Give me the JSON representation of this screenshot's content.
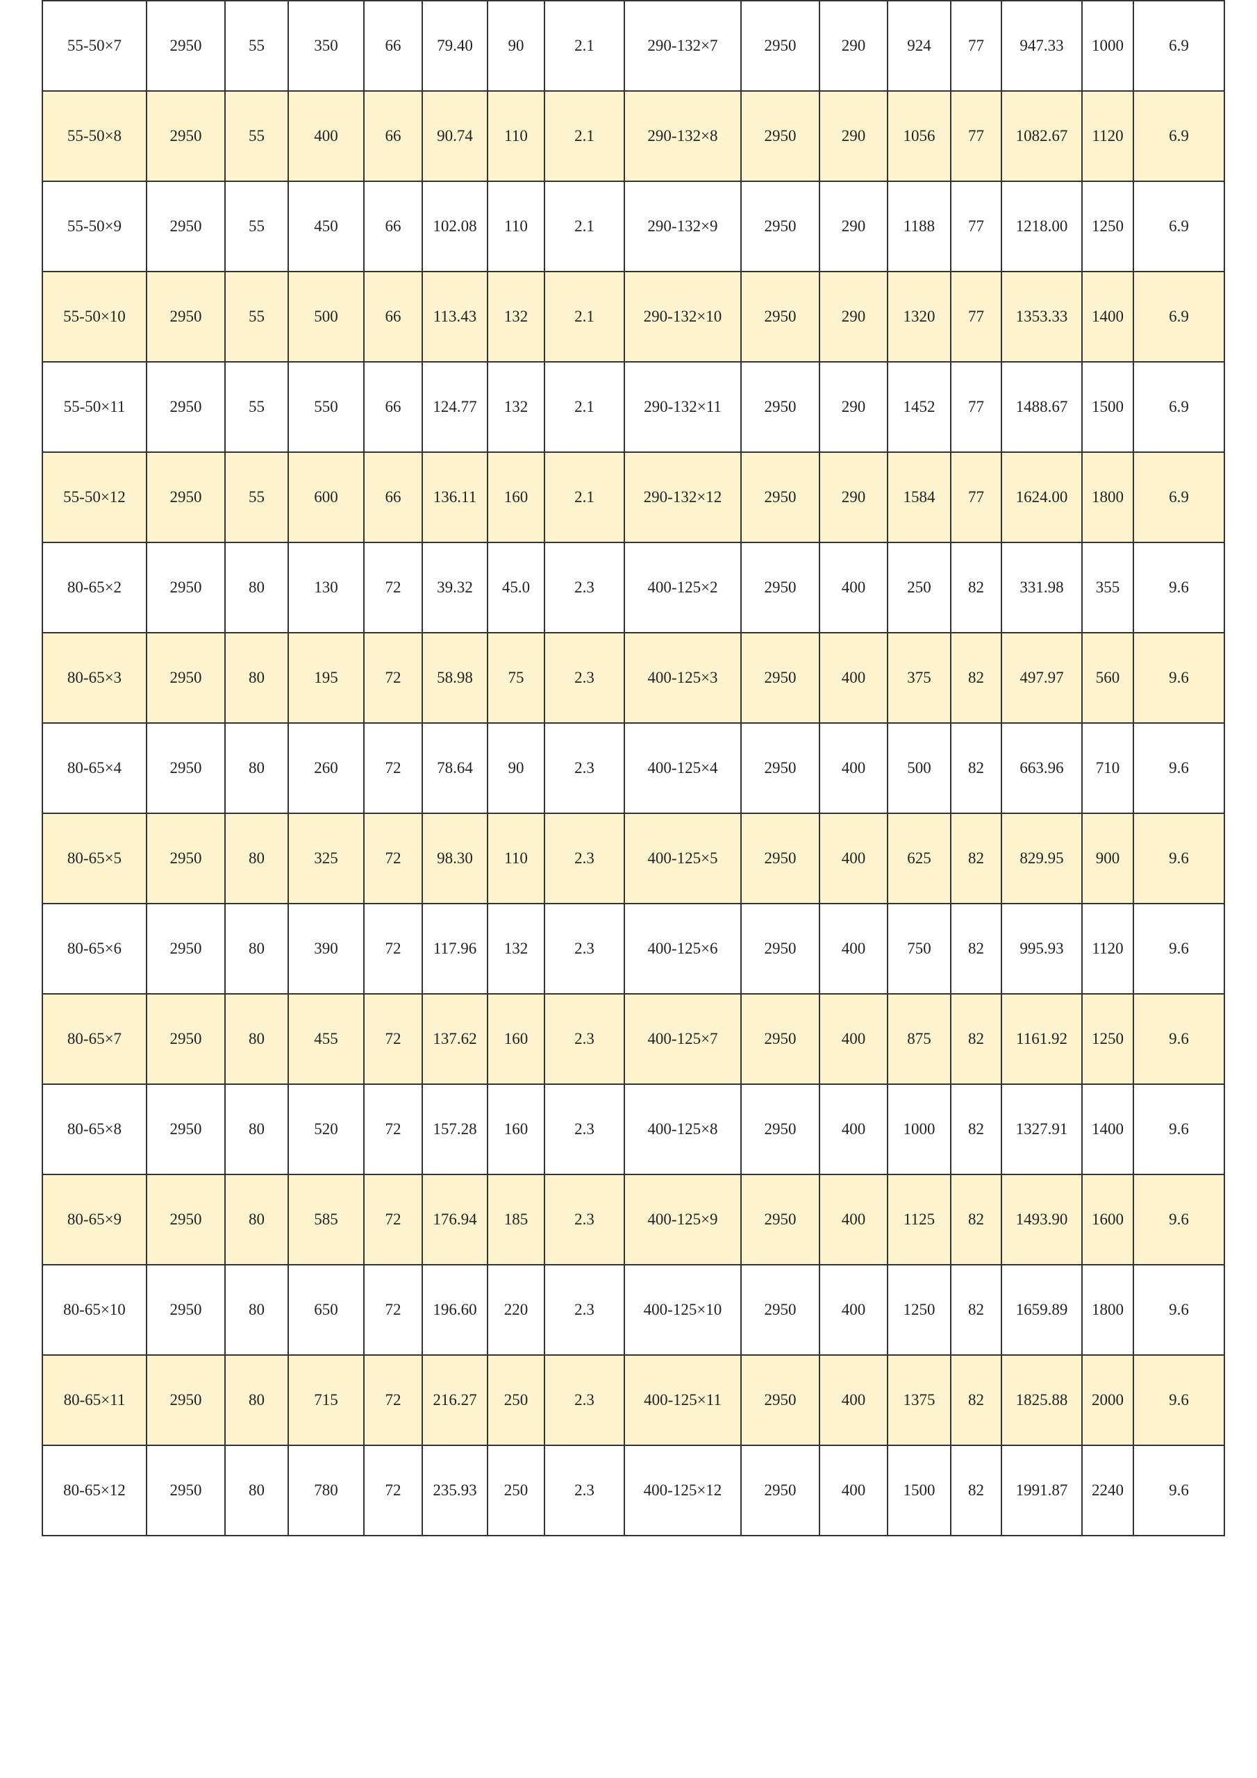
{
  "colors": {
    "row_alt_bg": "#FDF3CF",
    "row_bg": "#FFFFFF",
    "border": "#333333"
  },
  "table": {
    "rows": [
      [
        "55-50×7",
        "2950",
        "55",
        "350",
        "66",
        "79.40",
        "90",
        "2.1",
        "290-132×7",
        "2950",
        "290",
        "924",
        "77",
        "947.33",
        "1000",
        "6.9"
      ],
      [
        "55-50×8",
        "2950",
        "55",
        "400",
        "66",
        "90.74",
        "110",
        "2.1",
        "290-132×8",
        "2950",
        "290",
        "1056",
        "77",
        "1082.67",
        "1120",
        "6.9"
      ],
      [
        "55-50×9",
        "2950",
        "55",
        "450",
        "66",
        "102.08",
        "110",
        "2.1",
        "290-132×9",
        "2950",
        "290",
        "1188",
        "77",
        "1218.00",
        "1250",
        "6.9"
      ],
      [
        "55-50×10",
        "2950",
        "55",
        "500",
        "66",
        "113.43",
        "132",
        "2.1",
        "290-132×10",
        "2950",
        "290",
        "1320",
        "77",
        "1353.33",
        "1400",
        "6.9"
      ],
      [
        "55-50×11",
        "2950",
        "55",
        "550",
        "66",
        "124.77",
        "132",
        "2.1",
        "290-132×11",
        "2950",
        "290",
        "1452",
        "77",
        "1488.67",
        "1500",
        "6.9"
      ],
      [
        "55-50×12",
        "2950",
        "55",
        "600",
        "66",
        "136.11",
        "160",
        "2.1",
        "290-132×12",
        "2950",
        "290",
        "1584",
        "77",
        "1624.00",
        "1800",
        "6.9"
      ],
      [
        "80-65×2",
        "2950",
        "80",
        "130",
        "72",
        "39.32",
        "45.0",
        "2.3",
        "400-125×2",
        "2950",
        "400",
        "250",
        "82",
        "331.98",
        "355",
        "9.6"
      ],
      [
        "80-65×3",
        "2950",
        "80",
        "195",
        "72",
        "58.98",
        "75",
        "2.3",
        "400-125×3",
        "2950",
        "400",
        "375",
        "82",
        "497.97",
        "560",
        "9.6"
      ],
      [
        "80-65×4",
        "2950",
        "80",
        "260",
        "72",
        "78.64",
        "90",
        "2.3",
        "400-125×4",
        "2950",
        "400",
        "500",
        "82",
        "663.96",
        "710",
        "9.6"
      ],
      [
        "80-65×5",
        "2950",
        "80",
        "325",
        "72",
        "98.30",
        "110",
        "2.3",
        "400-125×5",
        "2950",
        "400",
        "625",
        "82",
        "829.95",
        "900",
        "9.6"
      ],
      [
        "80-65×6",
        "2950",
        "80",
        "390",
        "72",
        "117.96",
        "132",
        "2.3",
        "400-125×6",
        "2950",
        "400",
        "750",
        "82",
        "995.93",
        "1120",
        "9.6"
      ],
      [
        "80-65×7",
        "2950",
        "80",
        "455",
        "72",
        "137.62",
        "160",
        "2.3",
        "400-125×7",
        "2950",
        "400",
        "875",
        "82",
        "1161.92",
        "1250",
        "9.6"
      ],
      [
        "80-65×8",
        "2950",
        "80",
        "520",
        "72",
        "157.28",
        "160",
        "2.3",
        "400-125×8",
        "2950",
        "400",
        "1000",
        "82",
        "1327.91",
        "1400",
        "9.6"
      ],
      [
        "80-65×9",
        "2950",
        "80",
        "585",
        "72",
        "176.94",
        "185",
        "2.3",
        "400-125×9",
        "2950",
        "400",
        "1125",
        "82",
        "1493.90",
        "1600",
        "9.6"
      ],
      [
        "80-65×10",
        "2950",
        "80",
        "650",
        "72",
        "196.60",
        "220",
        "2.3",
        "400-125×10",
        "2950",
        "400",
        "1250",
        "82",
        "1659.89",
        "1800",
        "9.6"
      ],
      [
        "80-65×11",
        "2950",
        "80",
        "715",
        "72",
        "216.27",
        "250",
        "2.3",
        "400-125×11",
        "2950",
        "400",
        "1375",
        "82",
        "1825.88",
        "2000",
        "9.6"
      ],
      [
        "80-65×12",
        "2950",
        "80",
        "780",
        "72",
        "235.93",
        "250",
        "2.3",
        "400-125×12",
        "2950",
        "400",
        "1500",
        "82",
        "1991.87",
        "2240",
        "9.6"
      ]
    ]
  }
}
